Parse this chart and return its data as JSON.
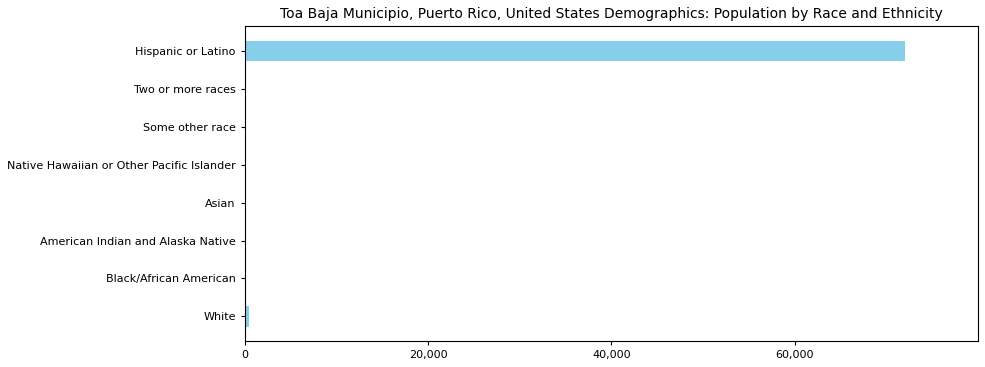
{
  "title": "Toa Baja Municipio, Puerto Rico, United States Demographics: Population by Race and Ethnicity",
  "categories": [
    "White",
    "Black/African American",
    "American Indian and Alaska Native",
    "Asian",
    "Native Hawaiian or Other Pacific Islander",
    "Some other race",
    "Two or more races",
    "Hispanic or Latino"
  ],
  "values": [
    500,
    10,
    10,
    10,
    10,
    10,
    10,
    72000
  ],
  "bar_color": "#87CEEB",
  "xlim": [
    0,
    80000
  ],
  "xticks": [
    0,
    20000,
    40000,
    60000
  ],
  "background_color": "#ffffff",
  "title_fontsize": 10,
  "tick_labelsize": 8
}
